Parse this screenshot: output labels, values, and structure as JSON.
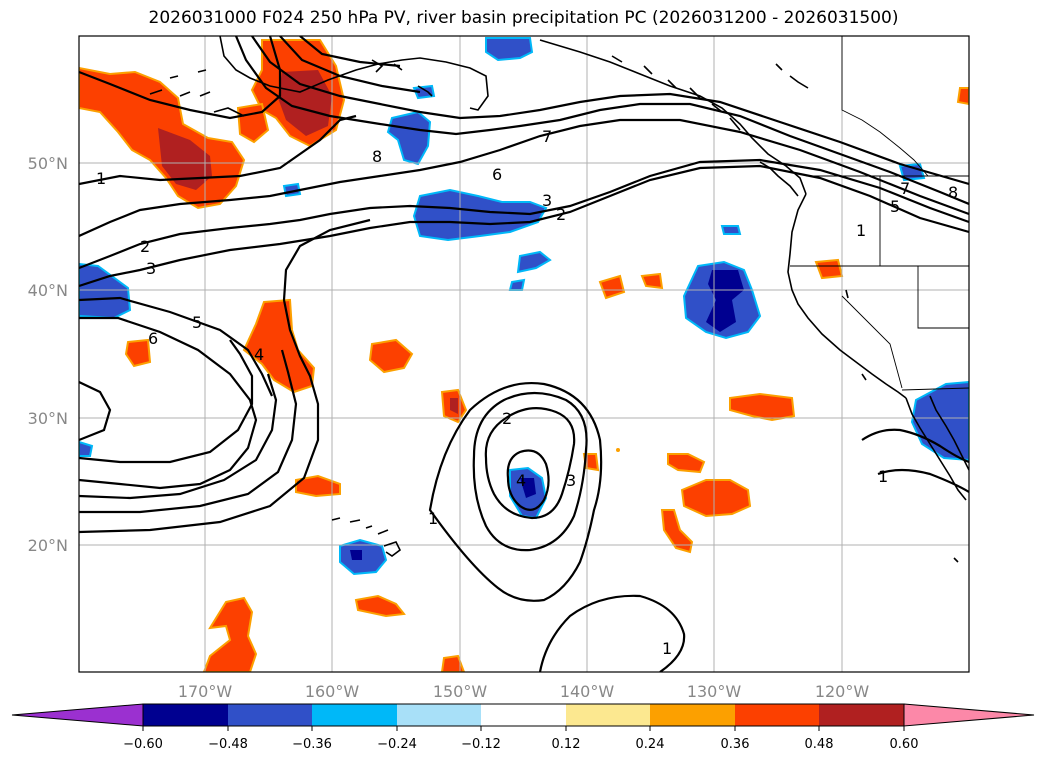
{
  "title": "2026031000 F024 250 hPa PV, river basin precipitation PC (2026031200 - 2026031500)",
  "lat_labels": [
    "50°N",
    "40°N",
    "30°N",
    "20°N"
  ],
  "lon_labels": [
    "170°W",
    "160°W",
    "150°W",
    "140°W",
    "130°W",
    "120°W"
  ],
  "contour_labels": [
    "1",
    "2",
    "3",
    "6",
    "5",
    "4",
    "8",
    "7",
    "6",
    "3",
    "2",
    "7",
    "5",
    "1",
    "8",
    "2",
    "3",
    "4",
    "1",
    "1",
    "1"
  ],
  "colorbar": {
    "tick_labels": [
      "−0.60",
      "−0.48",
      "−0.36",
      "−0.24",
      "−0.12",
      "0.12",
      "0.24",
      "0.36",
      "0.48",
      "0.60"
    ],
    "colors": [
      "#9b30d0",
      "#000090",
      "#3050c8",
      "#00b8f8",
      "#a8e0f8",
      "#ffffff",
      "#fce890",
      "#fca000",
      "#fc4000",
      "#b02020",
      "#fc88a8"
    ]
  },
  "colors": {
    "positive_strong": "#b02020",
    "positive": "#fc4000",
    "positive_weak": "#fca000",
    "negative_strong": "#000090",
    "negative": "#3050c8",
    "negative_weak": "#00b8f8"
  }
}
